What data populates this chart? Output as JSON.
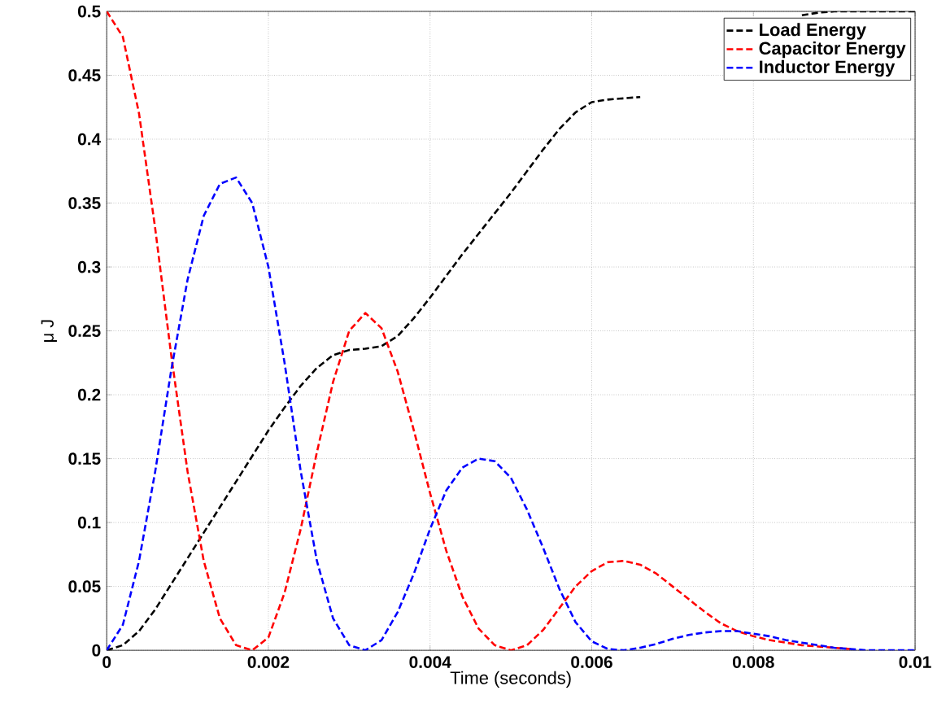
{
  "chart_data": {
    "type": "line",
    "xlabel": "Time (seconds)",
    "ylabel": "μ J",
    "x": [
      0,
      0.0002,
      0.0004,
      0.0006,
      0.0008,
      0.001,
      0.0012,
      0.0014,
      0.0016,
      0.0018,
      0.002,
      0.0022,
      0.0024,
      0.0026,
      0.0028,
      0.003,
      0.0032,
      0.0034,
      0.0036,
      0.0038,
      0.004,
      0.0042,
      0.0044,
      0.0046,
      0.0048,
      0.005,
      0.0052,
      0.0054,
      0.0056,
      0.0058,
      0.006,
      0.0062,
      0.0064,
      0.0066,
      0.0068,
      0.007,
      0.0072,
      0.0074,
      0.0076,
      0.0078,
      0.008,
      0.0082,
      0.0084,
      0.0086,
      0.0088,
      0.009,
      0.0092,
      0.0094,
      0.0096,
      0.0098,
      0.01
    ],
    "series": [
      {
        "name": "Load Energy",
        "color": "#000000",
        "values": [
          0,
          0.004,
          0.015,
          0.032,
          0.052,
          0.072,
          0.092,
          0.112,
          0.132,
          0.152,
          0.172,
          0.19,
          0.207,
          0.221,
          0.231,
          0.235,
          0.236,
          0.238,
          0.246,
          0.26,
          0.276,
          0.293,
          0.31,
          0.326,
          0.342,
          0.358,
          0.375,
          0.392,
          0.408,
          0.421,
          0.429,
          0.431,
          0.432,
          0.433,
          null,
          null,
          null,
          null,
          null,
          null,
          null,
          null,
          null,
          0.497,
          0.499,
          0.5,
          0.5,
          0.5,
          0.5,
          0.5,
          0.5
        ]
      },
      {
        "name": "Capacitor Energy",
        "color": "#ff0000",
        "values": [
          0.5,
          0.48,
          0.42,
          0.33,
          0.23,
          0.14,
          0.07,
          0.025,
          0.004,
          0,
          0.01,
          0.045,
          0.095,
          0.155,
          0.21,
          0.25,
          0.264,
          0.252,
          0.218,
          0.172,
          0.123,
          0.078,
          0.042,
          0.017,
          0.004,
          0,
          0.004,
          0.016,
          0.033,
          0.05,
          0.062,
          0.069,
          0.07,
          0.067,
          0.06,
          0.05,
          0.04,
          0.03,
          0.021,
          0.015,
          0.011,
          0.008,
          0.006,
          0.004,
          0.003,
          0.002,
          0.001,
          null,
          null,
          null,
          null
        ]
      },
      {
        "name": "Inductor Energy",
        "color": "#0000ff",
        "values": [
          0,
          0.02,
          0.07,
          0.14,
          0.22,
          0.29,
          0.34,
          0.365,
          0.37,
          0.35,
          0.3,
          0.225,
          0.14,
          0.07,
          0.025,
          0.004,
          0,
          0.008,
          0.03,
          0.06,
          0.095,
          0.125,
          0.143,
          0.15,
          0.148,
          0.135,
          0.11,
          0.08,
          0.048,
          0.022,
          0.007,
          0.001,
          0,
          0.002,
          0.005,
          0.009,
          0.012,
          0.014,
          0.015,
          0.015,
          0.013,
          0.011,
          0.008,
          0.006,
          0.004,
          0.002,
          0.001,
          0,
          0,
          0,
          0
        ]
      }
    ],
    "xlim": [
      0,
      0.01
    ],
    "xticks": [
      0,
      0.002,
      0.004,
      0.006,
      0.008,
      0.01
    ],
    "ylim": [
      0,
      0.5
    ],
    "yticks": [
      0,
      0.05,
      0.1,
      0.15,
      0.2,
      0.25,
      0.3,
      0.35,
      0.4,
      0.45,
      0.5
    ],
    "grid": true,
    "legend": "top right",
    "marker": "none",
    "line_style": "dashed"
  }
}
